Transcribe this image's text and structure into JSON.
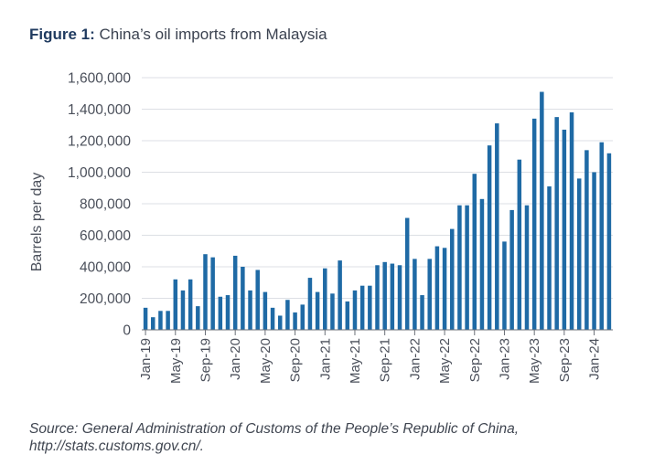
{
  "figure": {
    "label": "Figure 1:",
    "title": "China’s oil imports from Malaysia",
    "source_line1": "Source: General Administration of Customs of the People’s Republic of China,",
    "source_line2": "http://stats.customs.gov.cn/."
  },
  "chart_data": {
    "type": "bar",
    "ylabel": "Barrels per day",
    "xlabel": "",
    "ylim": [
      0,
      1600000
    ],
    "yticks": [
      0,
      200000,
      400000,
      600000,
      800000,
      1000000,
      1200000,
      1400000,
      1600000
    ],
    "ytick_labels": [
      "0",
      "200,000",
      "400,000",
      "600,000",
      "800,000",
      "1,000,000",
      "1,200,000",
      "1,400,000",
      "1,600,000"
    ],
    "bar_color": "#1f6aa5",
    "grid": true,
    "categories": [
      "Jan-19",
      "Feb-19",
      "Mar-19",
      "Apr-19",
      "May-19",
      "Jun-19",
      "Jul-19",
      "Aug-19",
      "Sep-19",
      "Oct-19",
      "Nov-19",
      "Dec-19",
      "Jan-20",
      "Feb-20",
      "Mar-20",
      "Apr-20",
      "May-20",
      "Jun-20",
      "Jul-20",
      "Aug-20",
      "Sep-20",
      "Oct-20",
      "Nov-20",
      "Dec-20",
      "Jan-21",
      "Feb-21",
      "Mar-21",
      "Apr-21",
      "May-21",
      "Jun-21",
      "Jul-21",
      "Aug-21",
      "Sep-21",
      "Oct-21",
      "Nov-21",
      "Dec-21",
      "Jan-22",
      "Feb-22",
      "Mar-22",
      "Apr-22",
      "May-22",
      "Jun-22",
      "Jul-22",
      "Aug-22",
      "Sep-22",
      "Oct-22",
      "Nov-22",
      "Dec-22",
      "Jan-23",
      "Feb-23",
      "Mar-23",
      "Apr-23",
      "May-23",
      "Jun-23",
      "Jul-23",
      "Aug-23",
      "Sep-23",
      "Oct-23",
      "Nov-23",
      "Dec-23",
      "Jan-24",
      "Feb-24",
      "Mar-24"
    ],
    "xtick_labels": [
      "Jan-19",
      "May-19",
      "Sep-19",
      "Jan-20",
      "May-20",
      "Sep-20",
      "Jan-21",
      "May-21",
      "Sep-21",
      "Jan-22",
      "May-22",
      "Sep-22",
      "Jan-23",
      "May-23",
      "Sep-23",
      "Jan-24"
    ],
    "values": [
      140000,
      80000,
      120000,
      120000,
      320000,
      250000,
      320000,
      150000,
      480000,
      460000,
      210000,
      220000,
      470000,
      400000,
      250000,
      380000,
      240000,
      140000,
      90000,
      190000,
      110000,
      160000,
      330000,
      240000,
      390000,
      230000,
      440000,
      180000,
      250000,
      280000,
      280000,
      410000,
      430000,
      420000,
      410000,
      710000,
      450000,
      220000,
      450000,
      530000,
      520000,
      640000,
      790000,
      790000,
      990000,
      830000,
      1170000,
      1310000,
      560000,
      760000,
      1080000,
      790000,
      1340000,
      1510000,
      910000,
      1350000,
      1270000,
      1380000,
      960000,
      1140000,
      1000000,
      1190000,
      1120000
    ]
  }
}
